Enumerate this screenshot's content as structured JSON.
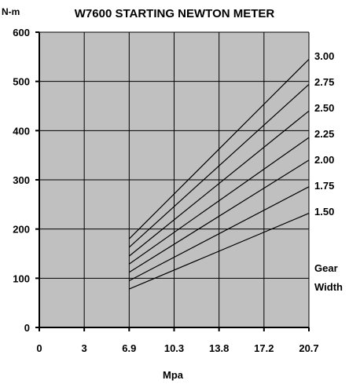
{
  "chart_data": {
    "type": "line",
    "title": "W7600 STARTING NEWTON METER",
    "ylabel": "N-m",
    "xlabel": "Mpa",
    "x_tick_labels": [
      "0",
      "3",
      "6.9",
      "10.3",
      "13.8",
      "17.2",
      "20.7"
    ],
    "y_tick_labels": [
      "0",
      "100",
      "200",
      "300",
      "400",
      "500",
      "600"
    ],
    "xlim": [
      0,
      20.7
    ],
    "ylim": [
      0,
      600
    ],
    "x_ticks": [
      0,
      3,
      6.9,
      10.3,
      13.8,
      17.2,
      20.7
    ],
    "y_ticks": [
      0,
      100,
      200,
      300,
      400,
      500,
      600
    ],
    "grid": true,
    "legend_title_lines": [
      "Gear",
      "Width"
    ],
    "series": [
      {
        "name": "1.50",
        "x": [
          6.9,
          20.7
        ],
        "y": [
          78,
          232
        ]
      },
      {
        "name": "1.75",
        "x": [
          6.9,
          20.7
        ],
        "y": [
          95,
          286
        ]
      },
      {
        "name": "2.00",
        "x": [
          6.9,
          20.7
        ],
        "y": [
          112,
          340
        ]
      },
      {
        "name": "2.25",
        "x": [
          6.9,
          20.7
        ],
        "y": [
          129,
          386
        ]
      },
      {
        "name": "2.50",
        "x": [
          6.9,
          20.7
        ],
        "y": [
          145,
          440
        ]
      },
      {
        "name": "2.75",
        "x": [
          6.9,
          20.7
        ],
        "y": [
          163,
          494
        ]
      },
      {
        "name": "3.00",
        "x": [
          6.9,
          20.7
        ],
        "y": [
          180,
          545
        ]
      }
    ],
    "colors": {
      "plot_background": "#c0c0c0",
      "grid": "#000000",
      "lines": "#000000"
    }
  }
}
